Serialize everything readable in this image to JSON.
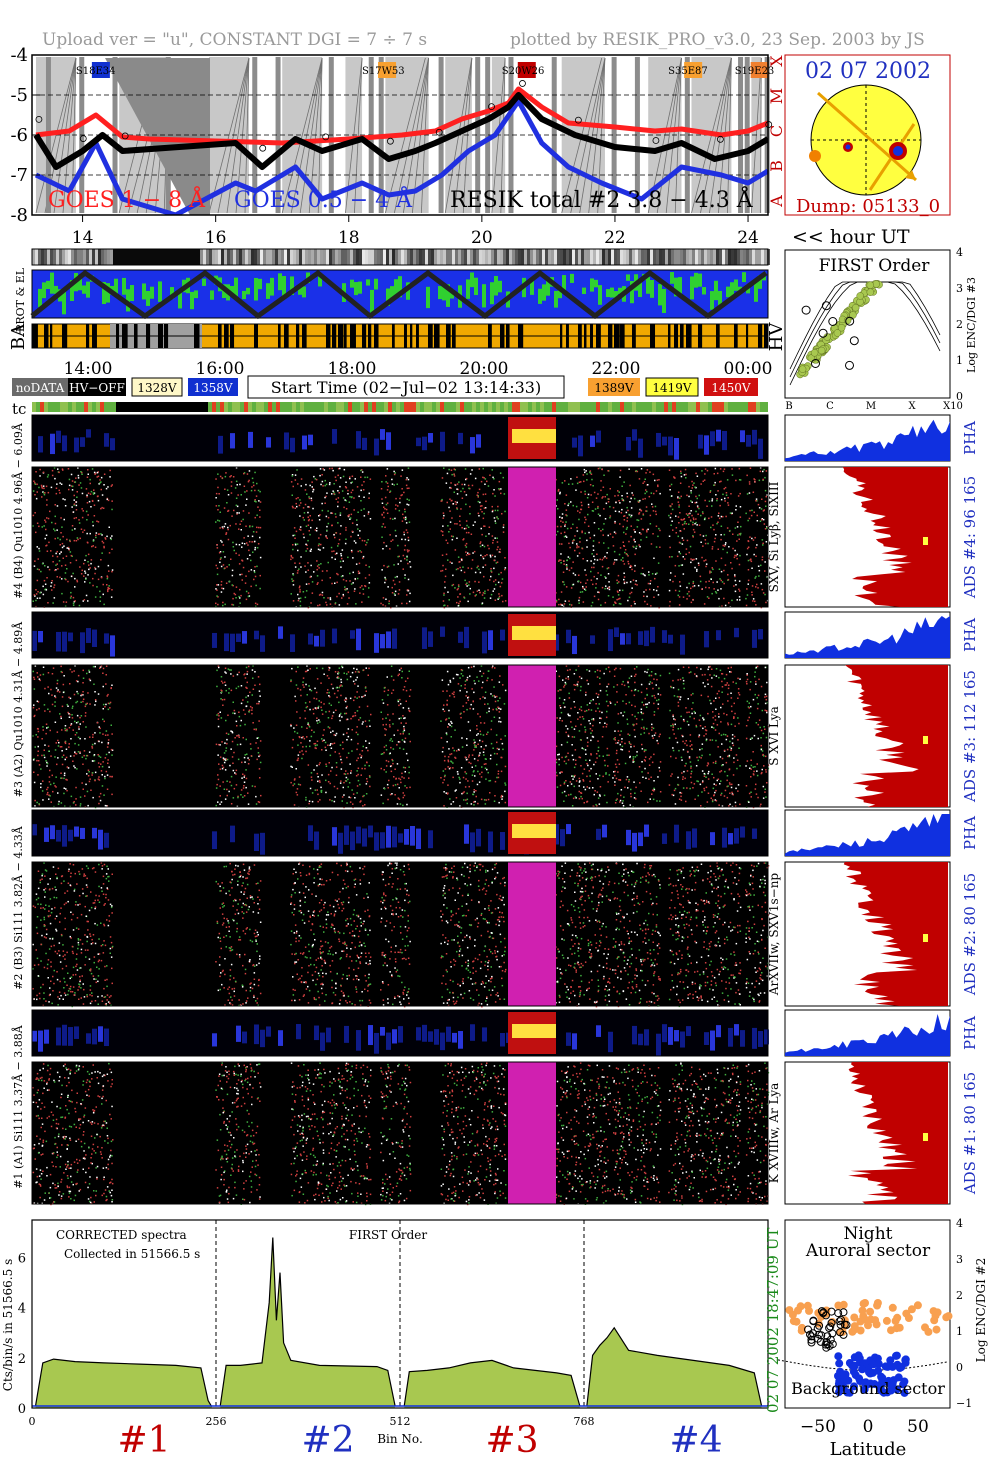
{
  "header": {
    "left": "Upload ver = \"u\", CONSTANT  DGI =   7 ÷   7 s",
    "right": "plotted by RESIK_PRO_v3.0, 23 Sep. 2003 by JS"
  },
  "colors": {
    "goes_long": "#ff2020",
    "goes_short": "#2030e0",
    "resik": "#000000",
    "spectrum_fill": "#a8c850",
    "ads_fill": "#c00000",
    "pha_fill": "#1030e0",
    "title_blue": "#2030c0",
    "title_red": "#c00000"
  },
  "chart_data": [
    {
      "type": "line",
      "name": "lightcurve",
      "ylim": [
        -8,
        -4
      ],
      "yticks": [
        "-4",
        "-5",
        "-6",
        "-7",
        "-8"
      ],
      "xlim": [
        13.24,
        24.3
      ],
      "xticks": [
        "14",
        "16",
        "18",
        "20",
        "22",
        "24"
      ],
      "goes_classes": [
        "X",
        "M",
        "C",
        "B",
        "A"
      ],
      "region_labels": [
        "S18E34",
        "S17W53",
        "S20W26",
        "S35E87",
        "S19E23"
      ],
      "series": [
        {
          "name": "GOES 1 − 8 Å",
          "x": [
            13.3,
            13.8,
            14.2,
            14.6,
            15.0,
            16.0,
            17.0,
            18.0,
            18.8,
            19.3,
            19.7,
            20.1,
            20.4,
            20.55,
            20.9,
            21.3,
            22.0,
            22.6,
            23.0,
            23.6,
            24.0,
            24.3
          ],
          "y": [
            -6.0,
            -5.9,
            -5.5,
            -6.05,
            -6.1,
            -6.15,
            -6.2,
            -6.1,
            -6.0,
            -5.9,
            -5.6,
            -5.4,
            -5.2,
            -4.85,
            -5.3,
            -5.7,
            -5.8,
            -5.9,
            -5.85,
            -6.0,
            -5.9,
            -5.7
          ]
        },
        {
          "name": "GOES 0.5 − 4 Å",
          "x": [
            13.3,
            13.8,
            14.2,
            14.6,
            15.4,
            16.3,
            16.6,
            17.2,
            17.6,
            18.2,
            18.6,
            19.0,
            19.4,
            19.8,
            20.2,
            20.55,
            20.9,
            21.3,
            21.8,
            22.4,
            23.0,
            23.6,
            24.0,
            24.3
          ],
          "y": [
            -7.0,
            -7.4,
            -6.2,
            -7.6,
            -8.0,
            -7.2,
            -7.4,
            -6.8,
            -7.6,
            -7.2,
            -7.5,
            -7.4,
            -7.0,
            -6.4,
            -6.0,
            -5.15,
            -6.2,
            -6.8,
            -7.2,
            -7.6,
            -6.8,
            -7.0,
            -7.2,
            -6.9
          ]
        },
        {
          "name": "RESIK total #2  3.8 − 4.3 Å",
          "x": [
            13.3,
            13.6,
            14.0,
            14.3,
            14.6,
            16.3,
            16.7,
            17.2,
            17.6,
            18.2,
            18.6,
            19.0,
            19.3,
            19.7,
            20.1,
            20.4,
            20.55,
            20.9,
            21.4,
            22.0,
            22.6,
            23.0,
            23.5,
            24.0,
            24.3
          ],
          "y": [
            -6.0,
            -6.8,
            -6.4,
            -6.0,
            -6.4,
            -6.2,
            -6.8,
            -6.1,
            -6.4,
            -6.1,
            -6.6,
            -6.4,
            -6.2,
            -5.9,
            -5.6,
            -5.3,
            -5.0,
            -5.6,
            -6.0,
            -6.3,
            -6.4,
            -6.2,
            -6.6,
            -6.4,
            -6.1
          ]
        }
      ]
    },
    {
      "type": "line",
      "name": "corrected-spectra",
      "title": "FIRST Order",
      "notes": [
        "CORRECTED spectra",
        "Collected in 51566.5 s"
      ],
      "ylabel": "Cts/bin/s in 51566.5 s",
      "xlabel": "Bin No.",
      "xlim": [
        0,
        1024
      ],
      "xticks": [
        "0",
        "256",
        "512",
        "768"
      ],
      "ylim": [
        0,
        7.5
      ],
      "yticks": [
        "0",
        "2",
        "4",
        "6"
      ],
      "channel_labels": [
        "#1",
        "#2",
        "#3",
        "#4"
      ],
      "side_labels": [
        "18:47:09 UT",
        "02 07 2002"
      ],
      "channels": [
        {
          "x": [
            5,
            15,
            30,
            60,
            100,
            150,
            200,
            235,
            245,
            250
          ],
          "y": [
            0.1,
            1.8,
            1.95,
            1.85,
            1.8,
            1.75,
            1.7,
            1.6,
            0.3,
            0.05
          ]
        },
        {
          "x": [
            262,
            270,
            290,
            320,
            330,
            335,
            340,
            345,
            350,
            360,
            400,
            480,
            495,
            505
          ],
          "y": [
            0.1,
            1.7,
            1.7,
            1.8,
            4.2,
            6.8,
            3.5,
            5.4,
            2.6,
            1.9,
            1.7,
            1.65,
            1.5,
            0.1
          ]
        },
        {
          "x": [
            518,
            525,
            550,
            580,
            610,
            640,
            670,
            700,
            730,
            750,
            762
          ],
          "y": [
            0.1,
            1.45,
            1.5,
            1.6,
            1.8,
            1.9,
            1.6,
            1.5,
            1.4,
            1.3,
            0.1
          ]
        },
        {
          "x": [
            772,
            780,
            790,
            800,
            810,
            830,
            870,
            920,
            970,
            1005,
            1015
          ],
          "y": [
            0.1,
            2.1,
            2.5,
            2.8,
            3.2,
            2.3,
            2.1,
            1.9,
            1.7,
            1.4,
            0.1
          ]
        }
      ]
    }
  ],
  "sun": {
    "date": "02 07 2002",
    "dump": "Dump: 05133_0"
  },
  "hour_axis": {
    "label": "<< hour UT",
    "ticks": [
      "14",
      "16",
      "18",
      "20",
      "22",
      "24"
    ]
  },
  "strips": {
    "prot_label": "PROT & EL",
    "ba_label": "BA",
    "hv_label": "HV"
  },
  "time_axis": {
    "ticks": [
      "14:00",
      "16:00",
      "18:00",
      "20:00",
      "22:00",
      "00:00"
    ]
  },
  "legend": {
    "nodata": "noDATA",
    "hvoff": "HV−OFF",
    "v1328": "1328V",
    "v1358": "1358V",
    "v1389": "1389V",
    "v1419": "1419V",
    "v1450": "1450V",
    "start_time": "Start Time (02−Jul−02 13:14:33)",
    "tc": "tc"
  },
  "first_order": {
    "title": "FIRST Order",
    "ylabel": "Log ENC/DGI #3",
    "yticks": [
      "4",
      "3",
      "2",
      "1",
      "0"
    ],
    "xticks": [
      "B",
      "C",
      "M",
      "X",
      "X10"
    ]
  },
  "detectors": [
    {
      "pha_label": "#4 (B4) Qu1010 4.96Å − 6.09Å",
      "spec_label": "",
      "line_label": "SXV, Si Lyβ, SiXIII",
      "ads_label": "ADS #4:   96 165",
      "pha_side": "PHA"
    },
    {
      "pha_label": "#3 (A2) Qu1010  4.31Å − 4.89Å",
      "spec_label": "",
      "line_label": "S XVI Lya",
      "ads_label": "ADS #3:   112 165",
      "pha_side": "PHA"
    },
    {
      "pha_label": "#2 (B3) Si111  3.82Å − 4.33Å",
      "spec_label": "",
      "line_label": "ArXVIIw, SXV1s−np",
      "ads_label": "ADS #2:   80 165",
      "pha_side": "PHA"
    },
    {
      "pha_label": "#1 (A1) Si111  3.37Å − 3.88Å",
      "spec_label": "",
      "line_label": "K XVIIIw, Ar Lya",
      "ads_label": "ADS #1:   80 165",
      "pha_side": "PHA"
    }
  ],
  "latitude_panel": {
    "title1": "Night",
    "title2": "Auroral sector",
    "bottom": "Background sector",
    "xlabel": "Latitude",
    "ylabel": "Log ENC/DGI #2",
    "xticks": [
      "−50",
      "0",
      "50"
    ],
    "yticks": [
      "4",
      "3",
      "2",
      "1",
      "0",
      "−1"
    ]
  }
}
